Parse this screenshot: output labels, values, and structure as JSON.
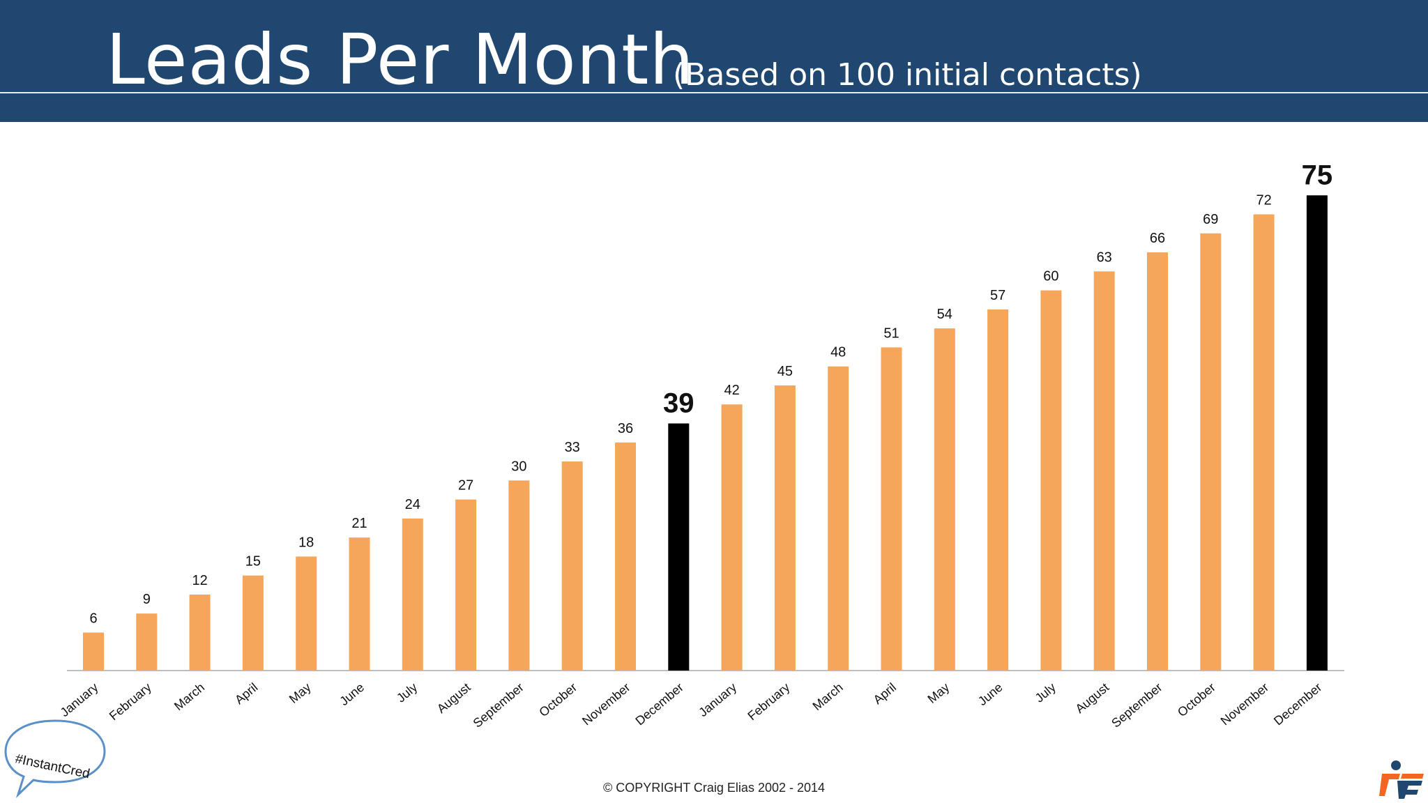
{
  "header": {
    "title": "Leads Per Month",
    "subtitle": "(Based on 100 initial contacts)"
  },
  "footer": {
    "copyright": "© COPYRIGHT Craig Elias 2002 - 2014",
    "hashtag": "#InstantCred",
    "logo_icon": "instant-freeze-logo-icon"
  },
  "colors": {
    "header_bg": "#1f4770",
    "bar": "#f5a65b",
    "highlight_bar": "#000000",
    "axis": "#bfbfbf",
    "bubble_stroke": "#5b8fc7"
  },
  "chart_data": {
    "type": "bar",
    "title": "Leads Per Month",
    "subtitle": "(Based on 100 initial contacts)",
    "xlabel": "",
    "ylabel": "",
    "ylim": [
      0,
      80
    ],
    "grid": false,
    "categories": [
      "January",
      "February",
      "March",
      "April",
      "May",
      "June",
      "July",
      "August",
      "September",
      "October",
      "November",
      "December",
      "January",
      "February",
      "March",
      "April",
      "May",
      "June",
      "July",
      "August",
      "September",
      "October",
      "November",
      "December"
    ],
    "values": [
      6,
      9,
      12,
      15,
      18,
      21,
      24,
      27,
      30,
      33,
      36,
      39,
      42,
      45,
      48,
      51,
      54,
      57,
      60,
      63,
      66,
      69,
      72,
      75
    ],
    "highlight_indices": [
      11,
      23
    ]
  }
}
